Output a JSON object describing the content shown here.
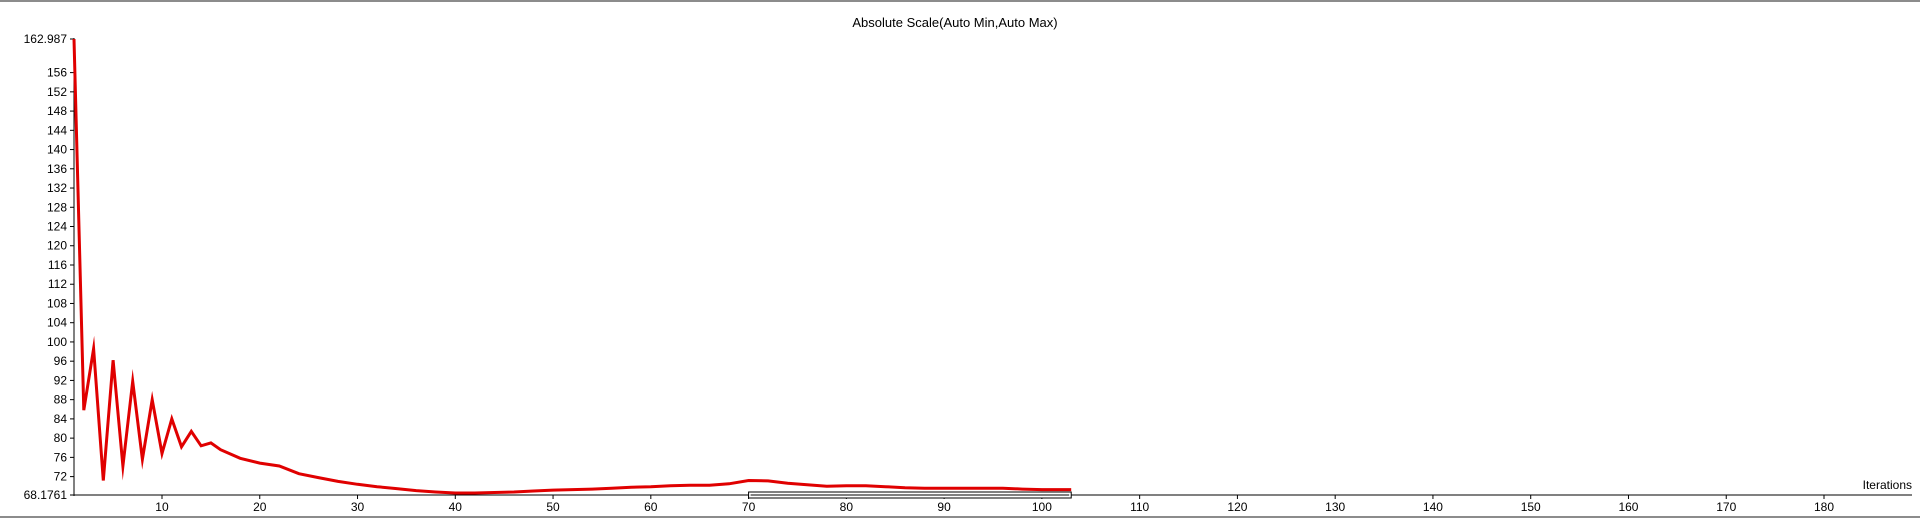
{
  "chart_data": {
    "type": "line",
    "title": "Absolute Scale(Auto Min,Auto Max)",
    "xlabel": "Iterations",
    "ylabel": "",
    "xlim": [
      1,
      189
    ],
    "ylim": [
      68.1761,
      162.987
    ],
    "x_ticks": [
      10,
      20,
      30,
      40,
      50,
      60,
      70,
      80,
      90,
      100,
      110,
      120,
      130,
      140,
      150,
      160,
      170,
      180
    ],
    "y_ticks": [
      "162.987",
      "156",
      "152",
      "148",
      "144",
      "140",
      "136",
      "132",
      "128",
      "124",
      "120",
      "116",
      "112",
      "108",
      "104",
      "100",
      "96",
      "92",
      "88",
      "84",
      "80",
      "76",
      "72",
      "68.1761"
    ],
    "grid": false,
    "legend": "none",
    "series": [
      {
        "color": "#e00000",
        "x": [
          1,
          2,
          3,
          4,
          5,
          6,
          7,
          8,
          9,
          10,
          11,
          12,
          13,
          14,
          15,
          16,
          18,
          20,
          22,
          24,
          26,
          28,
          30,
          32,
          34,
          36,
          38,
          40,
          42,
          44,
          46,
          48,
          50,
          52,
          54,
          56,
          58,
          60,
          62,
          64,
          66,
          68,
          70,
          72,
          74,
          76,
          78,
          80,
          82,
          84,
          86,
          88,
          90,
          92,
          94,
          96,
          98,
          100,
          102,
          103
        ],
        "y": [
          162.987,
          85.8,
          98.6,
          71.2,
          96.2,
          74.2,
          91.8,
          75.6,
          88.0,
          76.8,
          84.0,
          78.2,
          81.4,
          78.4,
          79.0,
          77.6,
          75.8,
          74.8,
          74.2,
          72.6,
          71.8,
          71.0,
          70.4,
          69.9,
          69.5,
          69.1,
          68.8,
          68.6,
          68.6,
          68.7,
          68.8,
          69.0,
          69.2,
          69.3,
          69.4,
          69.6,
          69.8,
          69.9,
          70.1,
          70.2,
          70.2,
          70.5,
          71.2,
          71.1,
          70.6,
          70.3,
          70.0,
          70.1,
          70.1,
          69.9,
          69.7,
          69.6,
          69.6,
          69.6,
          69.6,
          69.6,
          69.4,
          69.3,
          69.3,
          69.3
        ]
      }
    ]
  },
  "scroll": {
    "from": 70,
    "to": 103
  }
}
